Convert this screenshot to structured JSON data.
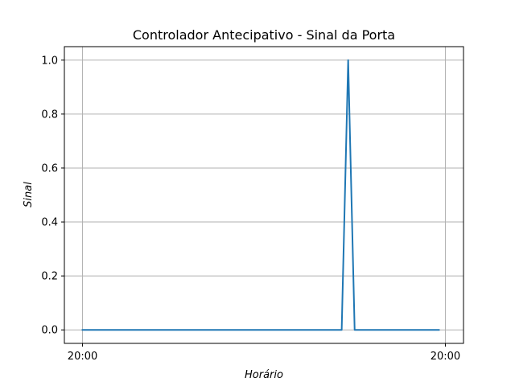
{
  "chart_data": {
    "type": "line",
    "title": "Controlador Antecipativo - Sinal da Porta",
    "xlabel": "Horário",
    "ylabel": "Sinal",
    "x_ticks": [
      "20:00",
      "20:00"
    ],
    "x_tick_positions": [
      0,
      56
    ],
    "ylim": [
      -0.05,
      1.05
    ],
    "y_ticks": [
      0.0,
      0.2,
      0.4,
      0.6,
      0.8,
      1.0
    ],
    "y_tick_labels": [
      "0.0",
      "0.2",
      "0.4",
      "0.6",
      "0.8",
      "1.0"
    ],
    "grid": true,
    "series": [
      {
        "color": "#1f77b4",
        "x": [
          0,
          40,
          41,
          42,
          55
        ],
        "y": [
          0,
          0,
          1,
          0,
          0
        ]
      }
    ]
  }
}
